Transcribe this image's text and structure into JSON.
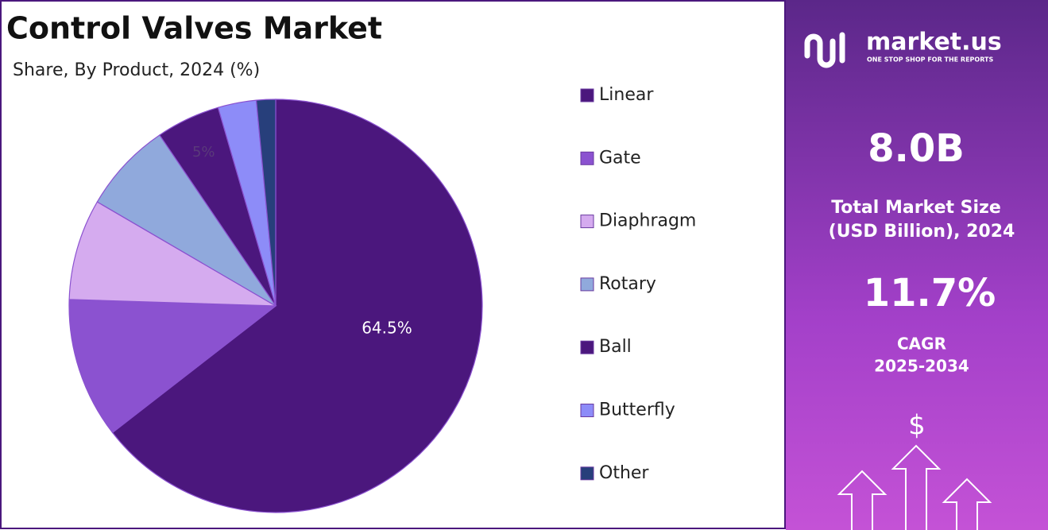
{
  "chart_data": {
    "type": "pie",
    "title": "Control Valves Market",
    "subtitle": "Share, By Product, 2024 (%)",
    "categories": [
      "Linear",
      "Gate",
      "Diaphragm",
      "Rotary",
      "Ball",
      "Butterfly",
      "Other"
    ],
    "values": [
      64.5,
      11,
      7.9,
      7.1,
      5,
      3,
      1.5
    ],
    "value_labels": [
      "64.5%",
      null,
      null,
      null,
      "5%",
      null,
      null
    ],
    "colors": [
      "#4b177d",
      "#8b52d0",
      "#d5abef",
      "#90a9dc",
      "#4b177d",
      "#8d8cf8",
      "#273f7b"
    ]
  },
  "panel": {
    "brand": "market.us",
    "tagline": "ONE STOP SHOP FOR THE REPORTS",
    "market_size": "8.0B",
    "market_size_label": [
      "Total Market Size",
      "(USD Billion), 2024"
    ],
    "cagr": "11.7%",
    "cagr_label": [
      "CAGR",
      "2025-2034"
    ],
    "icon_symbol": "$"
  }
}
